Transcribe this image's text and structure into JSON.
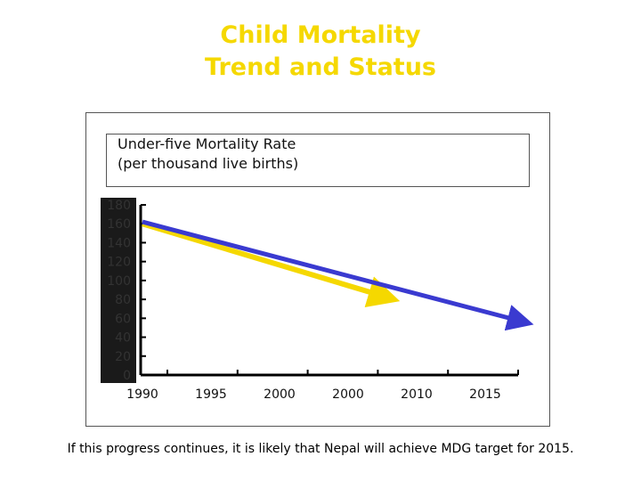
{
  "page": {
    "title_line1": "Child Mortality",
    "title_line2": "Trend and Status",
    "footer": "If this progress continues, it is likely that Nepal will achieve MDG target for 2015."
  },
  "colors": {
    "title": "#f5d800",
    "trend_arrow": "#3a3ad0",
    "achieved_arrow": "#f5d800",
    "axis": "#000000",
    "y_label_band": "#1a1a1a",
    "y_tick_text": "#333333"
  },
  "chart_data": {
    "type": "line",
    "title_line1": "Under-five Mortality Rate",
    "title_line2": "(per thousand live births)",
    "y_ticks": [
      "180",
      "160",
      "140",
      "120",
      "100",
      "80",
      "60",
      "40",
      "20",
      "0"
    ],
    "x_ticks": [
      "1990",
      "1995",
      "2000",
      "2000",
      "2010",
      "2015"
    ],
    "ylim": [
      0,
      180
    ],
    "grid": false,
    "series": [
      {
        "color": "#3a3ad0",
        "points": [
          [
            1990,
            162
          ],
          [
            2015,
            57
          ]
        ],
        "arrow": true
      },
      {
        "color": "#f5d800",
        "points": [
          [
            1990,
            160
          ],
          [
            2006,
            83
          ]
        ],
        "arrow": true
      }
    ]
  }
}
